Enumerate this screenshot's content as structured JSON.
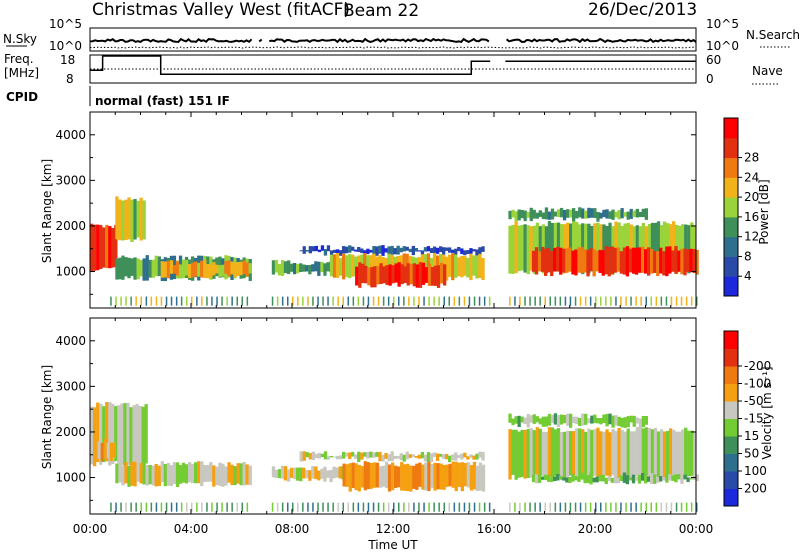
{
  "header": {
    "station": "Christmas Valley West (fitACF)",
    "beam": "Beam 22",
    "date": "26/Dec/2013"
  },
  "top_panels": {
    "nsky_label": "N.Sky",
    "nsearch_label": "N.Search",
    "freq_label_1": "Freq.",
    "freq_label_2": "[MHz]",
    "nave_label": "Nave",
    "cpid_label": "CPID",
    "cpid_value": "normal (fast) 151 IF",
    "noise_ticks_left": [
      "10^5",
      "10^0"
    ],
    "noise_ticks_right": [
      "10^5",
      "10^0"
    ],
    "freq_ticks": [
      "18",
      "8"
    ],
    "nave_ticks": [
      "60",
      "0"
    ]
  },
  "axes": {
    "time_label": "Time UT",
    "range_label": "Slant Range [km]",
    "time_ticks": [
      "00:00",
      "04:00",
      "08:00",
      "12:00",
      "16:00",
      "20:00",
      "00:00"
    ],
    "range_ticks": [
      "1000",
      "2000",
      "3000",
      "4000"
    ]
  },
  "colorbars": {
    "power_label": "Power [dB]",
    "power_ticks": [
      "4",
      "8",
      "12",
      "16",
      "20",
      "24",
      "28"
    ],
    "power_colors": [
      "#1c28dc",
      "#2a4aa8",
      "#2e6f8e",
      "#3f8f5a",
      "#9ad33a",
      "#f2b21a",
      "#f07a12",
      "#e23010",
      "#ff0000"
    ],
    "velocity_label": "Velocity [m s⁻¹]",
    "velocity_ticks": [
      "200",
      "100",
      "50",
      "15",
      "-15",
      "-50",
      "-100",
      "-200"
    ],
    "velocity_colors": [
      "#1c28dc",
      "#2a4aa8",
      "#2e6f8e",
      "#3f8f5a",
      "#73cc33",
      "#c8c8c0",
      "#f5a010",
      "#f07a12",
      "#e23010",
      "#ff0000"
    ]
  },
  "chart_data": {
    "type": "heatmap",
    "x_unit": "hours UT",
    "xlim": [
      0,
      24
    ],
    "ylim": [
      200,
      4500
    ],
    "gaps_hours": [
      [
        6.4,
        6.6
      ],
      [
        6.85,
        7.05
      ],
      [
        15.85,
        16.45
      ]
    ],
    "power_bands": [
      {
        "t0": 0.0,
        "t1": 1.0,
        "r0": 1050,
        "r1": 2000,
        "level": 7
      },
      {
        "t0": 1.0,
        "t1": 2.2,
        "r0": 1700,
        "r1": 2600,
        "level": 4
      },
      {
        "t0": 1.0,
        "t1": 6.3,
        "r0": 850,
        "r1": 1300,
        "level": 3
      },
      {
        "t0": 2.8,
        "t1": 6.3,
        "r0": 900,
        "r1": 1200,
        "level": 5
      },
      {
        "t0": 7.2,
        "t1": 10.0,
        "r0": 950,
        "r1": 1200,
        "level": 3
      },
      {
        "t0": 8.3,
        "t1": 15.6,
        "r0": 1400,
        "r1": 1520,
        "level": 1
      },
      {
        "t0": 9.5,
        "t1": 15.5,
        "r0": 850,
        "r1": 1350,
        "level": 5
      },
      {
        "t0": 10.5,
        "t1": 14.0,
        "r0": 700,
        "r1": 1150,
        "level": 7
      },
      {
        "t0": 16.45,
        "t1": 24.0,
        "r0": 1000,
        "r1": 2050,
        "level": 4
      },
      {
        "t0": 17.5,
        "t1": 24.0,
        "r0": 950,
        "r1": 1500,
        "level": 7
      },
      {
        "t0": 16.45,
        "t1": 22.0,
        "r0": 2150,
        "r1": 2350,
        "level": 3
      }
    ],
    "velocity_bands": [
      {
        "t0": 0.0,
        "t1": 2.2,
        "r0": 1300,
        "r1": 2600,
        "level": 5
      },
      {
        "t0": 0.3,
        "t1": 1.0,
        "r0": 1400,
        "r1": 1800,
        "level": 6
      },
      {
        "t0": 1.0,
        "t1": 6.3,
        "r0": 850,
        "r1": 1300,
        "level": 5
      },
      {
        "t0": 7.2,
        "t1": 10.0,
        "r0": 950,
        "r1": 1200,
        "level": 5
      },
      {
        "t0": 8.3,
        "t1": 15.6,
        "r0": 1400,
        "r1": 1520,
        "level": 5
      },
      {
        "t0": 10.0,
        "t1": 15.6,
        "r0": 750,
        "r1": 1300,
        "level": 6
      },
      {
        "t0": 16.45,
        "t1": 24.0,
        "r0": 1000,
        "r1": 2050,
        "level": 5
      },
      {
        "t0": 17.5,
        "t1": 24.0,
        "r0": 900,
        "r1": 1050,
        "level": 4
      },
      {
        "t0": 16.45,
        "t1": 22.0,
        "r0": 2150,
        "r1": 2350,
        "level": 4
      }
    ]
  }
}
